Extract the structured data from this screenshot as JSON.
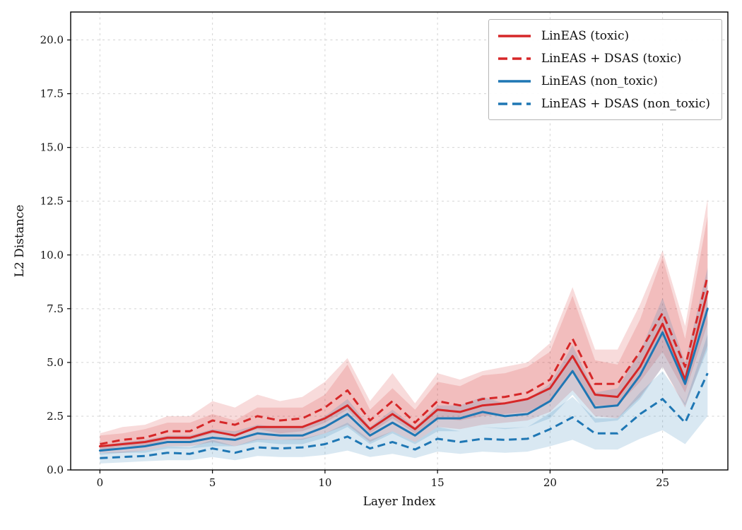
{
  "figure": {
    "background": "#ffffff",
    "grid_color": "#d3d3d3",
    "border_color": "#000000"
  },
  "chart_data": {
    "type": "line",
    "title": "",
    "xlabel": "Layer Index",
    "ylabel": "L2 Distance",
    "xlim": [
      -1.3,
      27.9
    ],
    "ylim": [
      0,
      21.3
    ],
    "xticks": [
      0,
      5,
      10,
      15,
      20,
      25
    ],
    "yticks": [
      0.0,
      2.5,
      5.0,
      7.5,
      10.0,
      12.5,
      15.0,
      17.5,
      20.0
    ],
    "grid": true,
    "legend_position": "upper right",
    "band_alpha": 0.17,
    "x": [
      0,
      1,
      2,
      3,
      4,
      5,
      6,
      7,
      8,
      9,
      10,
      11,
      12,
      13,
      14,
      15,
      16,
      17,
      18,
      19,
      20,
      21,
      22,
      23,
      24,
      25,
      26,
      27
    ],
    "series": [
      {
        "name": "LinEAS (toxic)",
        "color": "#d62728",
        "style": "solid",
        "values": [
          1.1,
          1.2,
          1.3,
          1.5,
          1.5,
          1.8,
          1.6,
          2.0,
          2.0,
          2.0,
          2.4,
          3.0,
          1.9,
          2.6,
          1.9,
          2.8,
          2.7,
          3.0,
          3.1,
          3.3,
          3.8,
          5.3,
          3.5,
          3.4,
          4.8,
          6.8,
          4.2,
          8.3
        ],
        "band_upper": [
          1.6,
          1.7,
          1.9,
          2.2,
          2.2,
          2.6,
          2.3,
          2.9,
          2.9,
          2.9,
          3.5,
          4.9,
          2.8,
          3.8,
          2.8,
          4.1,
          3.9,
          4.4,
          4.5,
          4.8,
          5.5,
          8.1,
          5.1,
          4.9,
          7.0,
          9.9,
          6.1,
          11.8
        ],
        "band_lower": [
          0.8,
          0.8,
          0.9,
          1.1,
          1.1,
          1.3,
          1.1,
          1.4,
          1.4,
          1.4,
          1.7,
          2.1,
          1.3,
          1.8,
          1.3,
          2.0,
          1.9,
          2.1,
          2.2,
          2.3,
          2.7,
          3.7,
          2.5,
          2.4,
          3.4,
          4.8,
          2.9,
          5.8
        ]
      },
      {
        "name": "LinEAS + DSAS (toxic)",
        "color": "#d62728",
        "style": "dashed",
        "values": [
          1.2,
          1.4,
          1.5,
          1.8,
          1.8,
          2.3,
          2.1,
          2.5,
          2.3,
          2.4,
          2.9,
          3.7,
          2.3,
          3.2,
          2.2,
          3.2,
          3.0,
          3.3,
          3.4,
          3.6,
          4.2,
          6.1,
          4.0,
          4.0,
          5.5,
          7.3,
          4.8,
          9.0
        ],
        "band_upper": [
          1.7,
          2.0,
          2.1,
          2.5,
          2.5,
          3.2,
          2.9,
          3.5,
          3.2,
          3.4,
          4.1,
          5.2,
          3.2,
          4.5,
          3.1,
          4.5,
          4.2,
          4.6,
          4.8,
          5.0,
          5.9,
          8.5,
          5.6,
          5.6,
          7.7,
          10.2,
          6.7,
          12.6
        ],
        "band_lower": [
          0.9,
          1.1,
          1.1,
          1.4,
          1.4,
          1.7,
          1.6,
          1.9,
          1.7,
          1.8,
          2.2,
          2.8,
          1.7,
          2.4,
          1.7,
          2.4,
          2.3,
          2.5,
          2.6,
          2.7,
          3.2,
          4.6,
          3.0,
          3.0,
          4.1,
          5.5,
          3.6,
          6.8
        ]
      },
      {
        "name": "LinEAS (non_toxic)",
        "color": "#1f77b4",
        "style": "solid",
        "values": [
          0.9,
          1.0,
          1.1,
          1.3,
          1.3,
          1.5,
          1.4,
          1.7,
          1.6,
          1.6,
          2.0,
          2.6,
          1.6,
          2.2,
          1.6,
          2.4,
          2.4,
          2.7,
          2.5,
          2.6,
          3.2,
          4.6,
          2.9,
          3.0,
          4.4,
          6.4,
          4.0,
          7.5
        ],
        "band_upper": [
          1.1,
          1.3,
          1.4,
          1.6,
          1.6,
          1.9,
          1.8,
          2.1,
          2.0,
          2.0,
          2.5,
          3.3,
          2.0,
          2.8,
          2.0,
          3.0,
          3.0,
          3.4,
          3.1,
          3.3,
          4.0,
          5.8,
          3.6,
          3.8,
          5.5,
          8.0,
          5.0,
          9.4
        ],
        "band_lower": [
          0.7,
          0.8,
          0.8,
          1.0,
          1.0,
          1.1,
          1.1,
          1.3,
          1.2,
          1.2,
          1.5,
          2.0,
          1.2,
          1.7,
          1.2,
          1.8,
          1.8,
          2.0,
          1.9,
          2.0,
          2.4,
          3.5,
          2.2,
          2.3,
          3.3,
          4.8,
          3.0,
          5.6
        ]
      },
      {
        "name": "LinEAS + DSAS (non_toxic)",
        "color": "#1f77b4",
        "style": "dashed",
        "values": [
          0.55,
          0.6,
          0.65,
          0.8,
          0.75,
          1.0,
          0.8,
          1.05,
          1.0,
          1.05,
          1.2,
          1.55,
          1.0,
          1.3,
          0.95,
          1.45,
          1.3,
          1.45,
          1.4,
          1.45,
          1.9,
          2.45,
          1.7,
          1.7,
          2.6,
          3.3,
          2.2,
          4.5
        ],
        "band_upper": [
          0.8,
          0.85,
          0.9,
          1.1,
          1.05,
          1.4,
          1.1,
          1.45,
          1.4,
          1.45,
          1.7,
          2.2,
          1.4,
          1.8,
          1.3,
          2.0,
          1.8,
          2.0,
          1.95,
          2.0,
          2.65,
          3.4,
          2.4,
          2.4,
          3.6,
          4.6,
          3.1,
          6.3
        ],
        "band_lower": [
          0.3,
          0.35,
          0.4,
          0.45,
          0.45,
          0.6,
          0.45,
          0.65,
          0.6,
          0.6,
          0.7,
          0.9,
          0.6,
          0.75,
          0.55,
          0.85,
          0.75,
          0.85,
          0.8,
          0.85,
          1.1,
          1.4,
          0.95,
          0.95,
          1.45,
          1.85,
          1.2,
          2.5
        ]
      }
    ]
  }
}
